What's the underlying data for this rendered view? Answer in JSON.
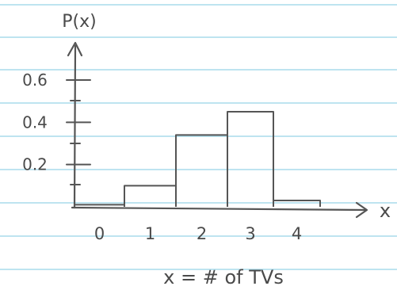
{
  "colors": {
    "paper": "#ffffff",
    "ruled_line": "#a9dcec",
    "ink": "#555555"
  },
  "chart_data": {
    "type": "bar",
    "title": "",
    "xlabel": "x",
    "ylabel": "P(x)",
    "caption": "x = # of TVs",
    "categories": [
      "0",
      "1",
      "2",
      "3",
      "4"
    ],
    "values": [
      0.01,
      0.1,
      0.34,
      0.45,
      0.03
    ],
    "yticks": [
      "0.6",
      "0.4",
      "0.2"
    ],
    "ylim": [
      0,
      0.6
    ],
    "grid": false
  }
}
